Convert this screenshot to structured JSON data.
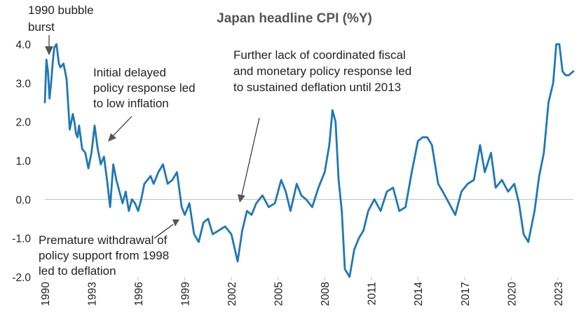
{
  "chart_data": {
    "type": "line",
    "title": "Japan headline CPI (%Y)",
    "xlabel": "",
    "ylabel": "",
    "xlim": [
      1990.0,
      2024.0
    ],
    "ylim": [
      -2.0,
      4.0
    ],
    "yticks": [
      "4.0",
      "3.0",
      "2.0",
      "1.0",
      "0.0",
      "-1.0",
      "-2.0"
    ],
    "ytick_values": [
      4,
      3,
      2,
      1,
      0,
      -1,
      -2
    ],
    "xticks": [
      "1990",
      "1993",
      "1996",
      "1999",
      "2002",
      "2005",
      "2008",
      "2011",
      "2014",
      "2017",
      "2020",
      "2023"
    ],
    "xtick_values": [
      1990,
      1993,
      1996,
      1999,
      2002,
      2005,
      2008,
      2011,
      2014,
      2017,
      2020,
      2023
    ],
    "grid": false,
    "colors": {
      "line": "#1f78b4",
      "annotation": "#222222",
      "title": "#555555"
    },
    "series": [
      {
        "x": [
          1990.0,
          1990.1,
          1990.2,
          1990.3,
          1990.4,
          1990.5,
          1990.6,
          1990.75,
          1990.9,
          1991.0,
          1991.2,
          1991.4,
          1991.6,
          1991.8,
          1991.9,
          1992.0,
          1992.1,
          1992.2,
          1992.4,
          1992.6,
          1992.8,
          1993.0,
          1993.2,
          1993.4,
          1993.6,
          1993.8,
          1994.0,
          1994.2,
          1994.4,
          1994.6,
          1994.8,
          1995.0,
          1995.2,
          1995.4,
          1995.6,
          1995.8,
          1996.0,
          1996.2,
          1996.4,
          1996.6,
          1996.8,
          1997.0,
          1997.3,
          1997.6,
          1997.9,
          1998.2,
          1998.5,
          1998.8,
          1999.0,
          1999.3,
          1999.6,
          1999.9,
          2000.2,
          2000.5,
          2000.8,
          2001.2,
          2001.6,
          2002.0,
          2002.4,
          2002.7,
          2003.0,
          2003.3,
          2003.6,
          2004.0,
          2004.4,
          2004.8,
          2005.2,
          2005.5,
          2005.8,
          2006.2,
          2006.5,
          2006.8,
          2007.2,
          2007.6,
          2008.0,
          2008.3,
          2008.5,
          2008.7,
          2008.9,
          2009.1,
          2009.3,
          2009.6,
          2009.9,
          2010.2,
          2010.5,
          2010.8,
          2011.2,
          2011.6,
          2012.0,
          2012.4,
          2012.8,
          2013.2,
          2013.6,
          2014.0,
          2014.3,
          2014.6,
          2014.9,
          2015.3,
          2015.6,
          2016.0,
          2016.4,
          2016.8,
          2017.2,
          2017.6,
          2018.0,
          2018.3,
          2018.7,
          2019.0,
          2019.4,
          2019.8,
          2020.2,
          2020.5,
          2020.8,
          2021.1,
          2021.5,
          2021.8,
          2022.1,
          2022.4,
          2022.7,
          2022.9,
          2023.1,
          2023.3,
          2023.5,
          2023.7,
          2024.0
        ],
        "values": [
          2.5,
          3.6,
          3.3,
          2.6,
          3.0,
          3.5,
          3.9,
          4.0,
          3.5,
          3.4,
          3.5,
          3.1,
          1.8,
          2.2,
          2.0,
          1.7,
          1.6,
          1.9,
          1.3,
          1.2,
          0.8,
          1.2,
          1.9,
          1.3,
          0.9,
          1.1,
          0.5,
          -0.2,
          0.9,
          0.5,
          0.2,
          -0.1,
          0.2,
          -0.3,
          0.0,
          -0.1,
          -0.3,
          0.0,
          0.4,
          0.5,
          0.6,
          0.4,
          0.7,
          0.9,
          0.4,
          0.5,
          0.7,
          -0.2,
          -0.4,
          -0.1,
          -0.9,
          -1.1,
          -0.6,
          -0.5,
          -0.9,
          -0.8,
          -0.7,
          -0.9,
          -1.6,
          -0.8,
          -0.3,
          -0.4,
          -0.1,
          0.1,
          -0.2,
          -0.1,
          0.5,
          0.2,
          -0.3,
          0.4,
          0.1,
          0.0,
          -0.2,
          0.3,
          0.7,
          1.4,
          2.3,
          2.0,
          0.5,
          -0.3,
          -1.8,
          -2.2,
          -1.3,
          -1.0,
          -0.8,
          -0.3,
          0.0,
          -0.3,
          0.2,
          0.3,
          -0.3,
          -0.2,
          0.7,
          1.5,
          1.6,
          1.6,
          1.4,
          0.4,
          0.2,
          -0.1,
          -0.4,
          0.2,
          0.4,
          0.5,
          1.4,
          0.7,
          1.2,
          0.3,
          0.5,
          0.2,
          0.4,
          -0.1,
          -0.9,
          -1.1,
          -0.3,
          0.6,
          1.2,
          2.5,
          3.0,
          4.0,
          4.0,
          3.3,
          3.2,
          3.2,
          3.3
        ]
      }
    ],
    "annotations": [
      {
        "lines": [
          "1990 bubble",
          "burst"
        ]
      },
      {
        "lines": [
          "Initial delayed",
          "policy response led",
          "to low inflation"
        ]
      },
      {
        "lines": [
          "Further lack of coordinated fiscal",
          "and monetary policy response led",
          "to sustained deflation until 2013"
        ]
      },
      {
        "lines": [
          "Premature withdrawal of",
          "policy support from 1998",
          "led to deflation"
        ]
      }
    ]
  }
}
